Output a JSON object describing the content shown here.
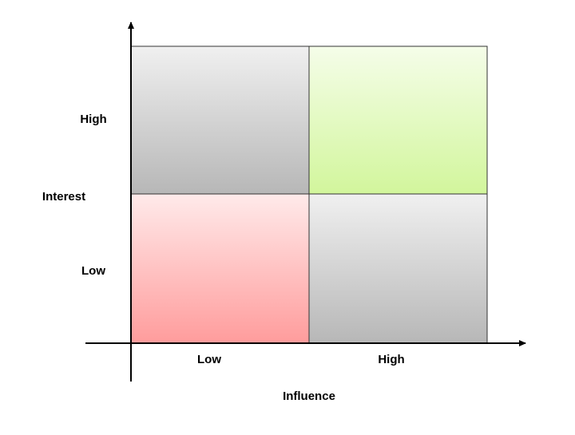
{
  "y_axis": {
    "label": "Interest",
    "ticks": [
      "High",
      "Low"
    ]
  },
  "x_axis": {
    "label": "Influence",
    "ticks": [
      "Low",
      "High"
    ]
  }
}
